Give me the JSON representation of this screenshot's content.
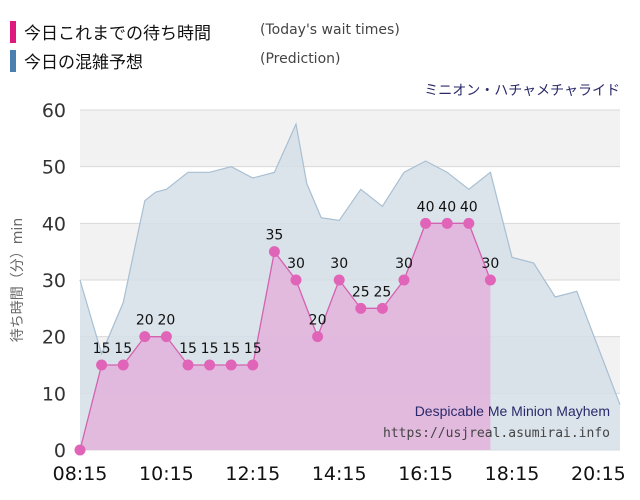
{
  "legend": {
    "items": [
      {
        "label": "今日これまでの待ち時間",
        "label_en": "(Today's wait times)",
        "color": "#e0197d"
      },
      {
        "label": "今日の混雑予想",
        "label_en": "(Prediction)",
        "color": "#4a7fb0"
      }
    ]
  },
  "attraction_name_ja": "ミニオン・ハチャメチャライド",
  "chart_data": {
    "type": "area",
    "ylabel": "待ち時間（分）min",
    "ylim": [
      0,
      60
    ],
    "yticks": [
      0,
      10,
      20,
      30,
      40,
      50,
      60
    ],
    "xticks": [
      "08:15",
      "10:15",
      "12:15",
      "14:15",
      "16:15",
      "18:15",
      "20:15"
    ],
    "xlim": [
      "08:15",
      "20:45"
    ],
    "grid": true,
    "annotations": {
      "name_en": "Despicable Me Minion Mayhem",
      "url": "https://usjreal.asumirai.info"
    },
    "colors": {
      "today_line": "#d462b0",
      "today_fill": "#e2b5dd",
      "today_point": "#e065b8",
      "prediction_line": "#a9bfd2",
      "prediction_fill": "#d5dfe8"
    },
    "series": [
      {
        "name": "今日これまでの待ち時間",
        "x": [
          "08:15",
          "08:45",
          "09:15",
          "09:45",
          "10:15",
          "10:45",
          "11:15",
          "11:45",
          "12:15",
          "12:45",
          "13:15",
          "13:45",
          "14:15",
          "14:45",
          "15:15",
          "15:45",
          "16:15",
          "16:45",
          "17:15",
          "17:45"
        ],
        "values": [
          0,
          15,
          15,
          20,
          20,
          15,
          15,
          15,
          15,
          35,
          30,
          20,
          30,
          25,
          25,
          30,
          40,
          40,
          40,
          30
        ],
        "labels": [
          "",
          "15",
          "15",
          "20",
          "20",
          "15",
          "15",
          "15",
          "15",
          "35",
          "30",
          "20",
          "30",
          "25",
          "25",
          "30",
          "40",
          "40",
          "40",
          "30"
        ]
      },
      {
        "name": "今日の混雑予想",
        "x": [
          "08:15",
          "08:45",
          "09:15",
          "09:45",
          "10:00",
          "10:15",
          "10:45",
          "11:15",
          "11:45",
          "12:15",
          "12:45",
          "13:15",
          "13:30",
          "13:50",
          "14:15",
          "14:45",
          "15:15",
          "15:45",
          "16:15",
          "16:45",
          "17:15",
          "17:45",
          "18:15",
          "18:45",
          "19:15",
          "19:45",
          "20:15",
          "20:45"
        ],
        "values": [
          30,
          17,
          26,
          44,
          45.5,
          46,
          49,
          49,
          50,
          48,
          49,
          57.5,
          47,
          41,
          40.5,
          46,
          43,
          49,
          51,
          49,
          46,
          49,
          34,
          33,
          27,
          28,
          18,
          8
        ]
      }
    ]
  }
}
